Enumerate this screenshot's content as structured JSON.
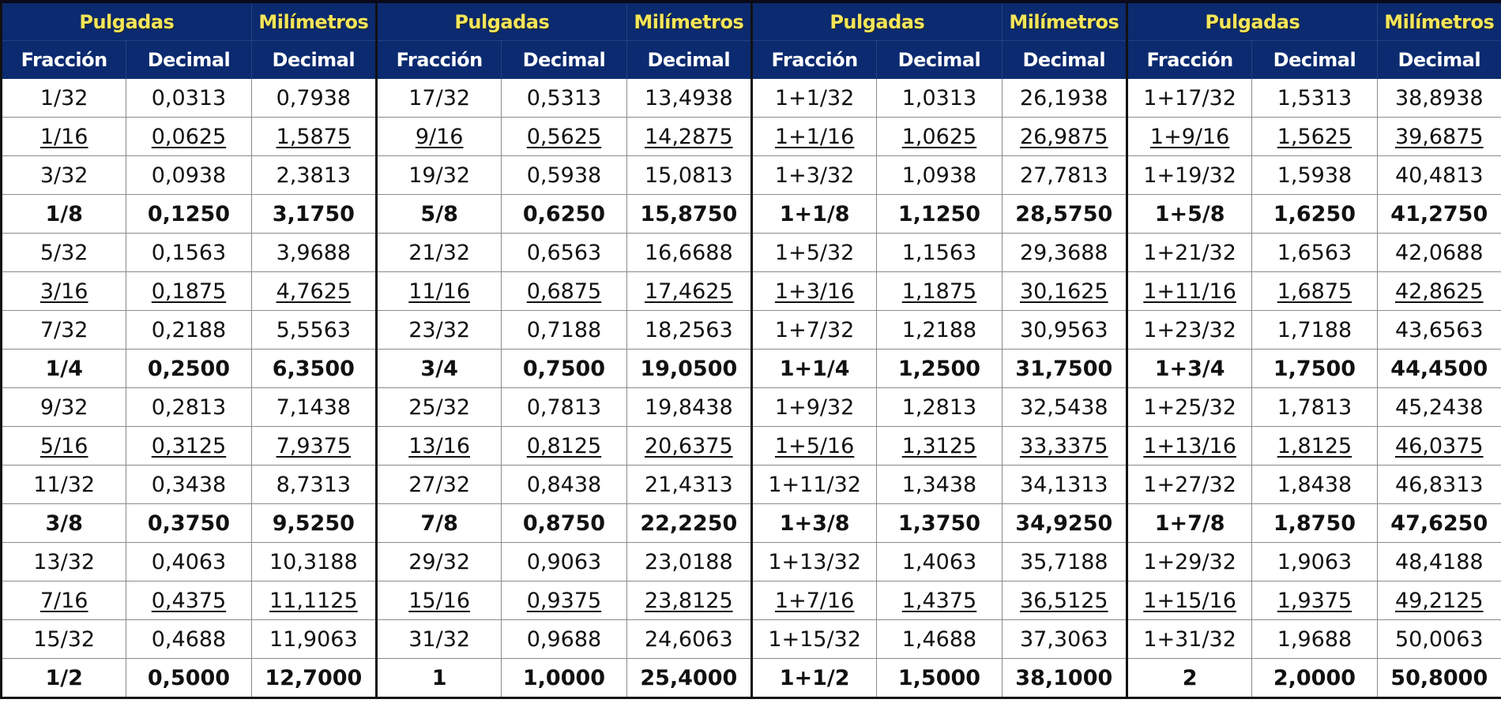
{
  "table": {
    "group_headers": [
      "Pulgadas",
      "Milímetros",
      "Pulgadas",
      "Milímetros",
      "Pulgadas",
      "Milímetros",
      "Pulgadas",
      "Milímetros"
    ],
    "column_headers": [
      "Fracción",
      "Decimal",
      "Decimal",
      "Fracción",
      "Decimal",
      "Decimal",
      "Fracción",
      "Decimal",
      "Decimal",
      "Fracción",
      "Decimal",
      "Decimal"
    ],
    "colors": {
      "header_bg": "#0b2a6f",
      "group_title": "#f2e55a",
      "subheader_text": "#ffffff"
    },
    "rows": [
      {
        "style": "normal",
        "cells": [
          "1/32",
          "0,0313",
          "0,7938",
          "17/32",
          "0,5313",
          "13,4938",
          "1+1/32",
          "1,0313",
          "26,1938",
          "1+17/32",
          "1,5313",
          "38,8938"
        ]
      },
      {
        "style": "underline",
        "cells": [
          "1/16",
          "0,0625",
          "1,5875",
          "9/16",
          "0,5625",
          "14,2875",
          "1+1/16",
          "1,0625",
          "26,9875",
          "1+9/16",
          "1,5625",
          "39,6875"
        ]
      },
      {
        "style": "normal",
        "cells": [
          "3/32",
          "0,0938",
          "2,3813",
          "19/32",
          "0,5938",
          "15,0813",
          "1+3/32",
          "1,0938",
          "27,7813",
          "1+19/32",
          "1,5938",
          "40,4813"
        ]
      },
      {
        "style": "bold",
        "cells": [
          "1/8",
          "0,1250",
          "3,1750",
          "5/8",
          "0,6250",
          "15,8750",
          "1+1/8",
          "1,1250",
          "28,5750",
          "1+5/8",
          "1,6250",
          "41,2750"
        ]
      },
      {
        "style": "normal",
        "cells": [
          "5/32",
          "0,1563",
          "3,9688",
          "21/32",
          "0,6563",
          "16,6688",
          "1+5/32",
          "1,1563",
          "29,3688",
          "1+21/32",
          "1,6563",
          "42,0688"
        ]
      },
      {
        "style": "underline",
        "cells": [
          "3/16",
          "0,1875",
          "4,7625",
          "11/16",
          "0,6875",
          "17,4625",
          "1+3/16",
          "1,1875",
          "30,1625",
          "1+11/16",
          "1,6875",
          "42,8625"
        ]
      },
      {
        "style": "normal",
        "cells": [
          "7/32",
          "0,2188",
          "5,5563",
          "23/32",
          "0,7188",
          "18,2563",
          "1+7/32",
          "1,2188",
          "30,9563",
          "1+23/32",
          "1,7188",
          "43,6563"
        ]
      },
      {
        "style": "bold",
        "cells": [
          "1/4",
          "0,2500",
          "6,3500",
          "3/4",
          "0,7500",
          "19,0500",
          "1+1/4",
          "1,2500",
          "31,7500",
          "1+3/4",
          "1,7500",
          "44,4500"
        ]
      },
      {
        "style": "normal",
        "cells": [
          "9/32",
          "0,2813",
          "7,1438",
          "25/32",
          "0,7813",
          "19,8438",
          "1+9/32",
          "1,2813",
          "32,5438",
          "1+25/32",
          "1,7813",
          "45,2438"
        ]
      },
      {
        "style": "underline",
        "cells": [
          "5/16",
          "0,3125",
          "7,9375",
          "13/16",
          "0,8125",
          "20,6375",
          "1+5/16",
          "1,3125",
          "33,3375",
          "1+13/16",
          "1,8125",
          "46,0375"
        ]
      },
      {
        "style": "normal",
        "cells": [
          "11/32",
          "0,3438",
          "8,7313",
          "27/32",
          "0,8438",
          "21,4313",
          "1+11/32",
          "1,3438",
          "34,1313",
          "1+27/32",
          "1,8438",
          "46,8313"
        ]
      },
      {
        "style": "bold",
        "cells": [
          "3/8",
          "0,3750",
          "9,5250",
          "7/8",
          "0,8750",
          "22,2250",
          "1+3/8",
          "1,3750",
          "34,9250",
          "1+7/8",
          "1,8750",
          "47,6250"
        ]
      },
      {
        "style": "normal",
        "cells": [
          "13/32",
          "0,4063",
          "10,3188",
          "29/32",
          "0,9063",
          "23,0188",
          "1+13/32",
          "1,4063",
          "35,7188",
          "1+29/32",
          "1,9063",
          "48,4188"
        ]
      },
      {
        "style": "underline",
        "cells": [
          "7/16",
          "0,4375",
          "11,1125",
          "15/16",
          "0,9375",
          "23,8125",
          "1+7/16",
          "1,4375",
          "36,5125",
          "1+15/16",
          "1,9375",
          "49,2125"
        ]
      },
      {
        "style": "normal",
        "cells": [
          "15/32",
          "0,4688",
          "11,9063",
          "31/32",
          "0,9688",
          "24,6063",
          "1+15/32",
          "1,4688",
          "37,3063",
          "1+31/32",
          "1,9688",
          "50,0063"
        ]
      },
      {
        "style": "bold",
        "cells": [
          "1/2",
          "0,5000",
          "12,7000",
          "1",
          "1,0000",
          "25,4000",
          "1+1/2",
          "1,5000",
          "38,1000",
          "2",
          "2,0000",
          "50,8000"
        ]
      }
    ]
  }
}
